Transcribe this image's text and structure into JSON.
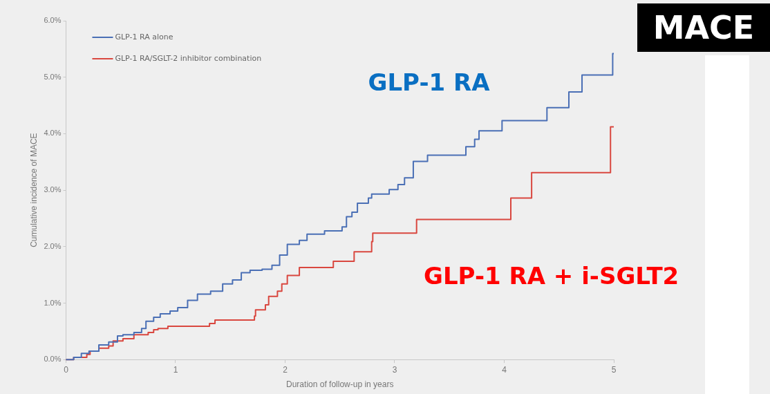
{
  "chart_data": {
    "type": "step",
    "title": "MACE",
    "xlabel": "Duration of follow-up in years",
    "ylabel": "Cumulative incidence of MACE",
    "xlim": [
      0,
      5
    ],
    "xticks": [
      0,
      1,
      2,
      3,
      4,
      5
    ],
    "ylim": [
      0,
      6
    ],
    "yticks": [
      {
        "value": 0,
        "label": "0.0%"
      },
      {
        "value": 1,
        "label": "1.0%"
      },
      {
        "value": 2,
        "label": "2.0%"
      },
      {
        "value": 3,
        "label": "3.0%"
      },
      {
        "value": 4,
        "label": "4.0%"
      },
      {
        "value": 5,
        "label": "5.0%"
      },
      {
        "value": 6,
        "label": "6.0%"
      }
    ],
    "legend": "top left",
    "grid": false,
    "marker": "none",
    "series": [
      {
        "name": "GLP-1 RA alone",
        "color": "#4a6fb5",
        "x": [
          0,
          0.07,
          0.14,
          0.21,
          0.3,
          0.39,
          0.47,
          0.52,
          0.62,
          0.69,
          0.73,
          0.8,
          0.86,
          0.95,
          1.02,
          1.11,
          1.2,
          1.32,
          1.43,
          1.52,
          1.6,
          1.68,
          1.79,
          1.88,
          1.95,
          2.02,
          2.13,
          2.2,
          2.36,
          2.52,
          2.56,
          2.61,
          2.66,
          2.76,
          2.79,
          2.95,
          3.03,
          3.09,
          3.17,
          3.3,
          3.65,
          3.73,
          3.77,
          3.98,
          4.39,
          4.59,
          4.71,
          4.99,
          5.0
        ],
        "values": [
          0,
          0,
          0.04,
          0.11,
          0.15,
          0.26,
          0.31,
          0.42,
          0.44,
          0.48,
          0.55,
          0.68,
          0.75,
          0.81,
          0.86,
          0.92,
          1.05,
          1.16,
          1.21,
          1.34,
          1.41,
          1.54,
          1.58,
          1.6,
          1.67,
          1.85,
          2.04,
          2.11,
          2.22,
          2.28,
          2.35,
          2.53,
          2.61,
          2.77,
          2.86,
          2.93,
          3.01,
          3.1,
          3.22,
          3.51,
          3.62,
          3.77,
          3.9,
          4.05,
          4.23,
          4.46,
          4.74,
          5.04,
          5.42
        ]
      },
      {
        "name": "GLP-1 RA/SGLT-2 inhibitor combination",
        "color": "#d9473f",
        "x": [
          0,
          0.07,
          0.19,
          0.22,
          0.3,
          0.39,
          0.43,
          0.52,
          0.62,
          0.75,
          0.8,
          0.84,
          0.93,
          1.31,
          1.36,
          1.72,
          1.73,
          1.82,
          1.85,
          1.93,
          1.97,
          2.02,
          2.13,
          2.44,
          2.63,
          2.79,
          2.8,
          3.2,
          4.06,
          4.25,
          4.97,
          5.0
        ],
        "values": [
          0,
          0,
          0.04,
          0.09,
          0.15,
          0.2,
          0.24,
          0.33,
          0.37,
          0.44,
          0.48,
          0.53,
          0.55,
          0.59,
          0.64,
          0.7,
          0.77,
          0.88,
          0.97,
          1.12,
          1.21,
          1.34,
          1.49,
          1.63,
          1.74,
          1.91,
          2.09,
          2.24,
          2.48,
          2.86,
          3.31,
          4.12
        ]
      }
    ],
    "annotations": [
      "GLP-1 RA",
      "GLP-1 RA + i-SGLT2"
    ]
  }
}
